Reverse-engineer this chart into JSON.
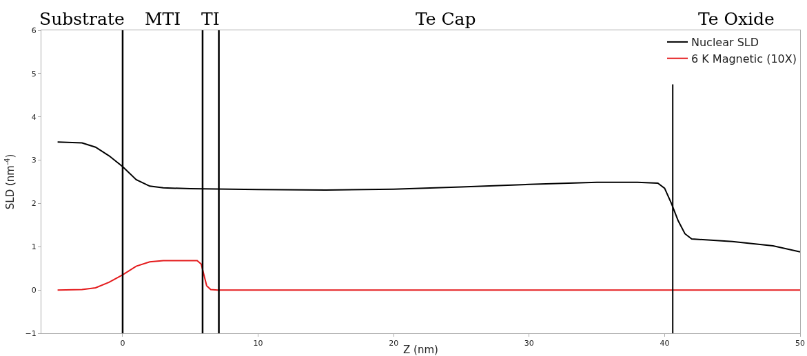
{
  "chart_data": {
    "type": "line",
    "xlabel": "Z (nm)",
    "ylabel": "SLD (nm$^{-4}$)",
    "xlim": [
      -6,
      50
    ],
    "xticks": [
      0,
      10,
      20,
      30,
      40,
      50
    ],
    "ylim": [
      -1,
      6
    ],
    "yticks": [
      -1,
      0,
      1,
      2,
      3,
      4,
      5,
      6
    ],
    "grid": false,
    "legend": "top right",
    "marker": "none",
    "line_style": "solid",
    "series": [
      {
        "name": "Nuclear SLD",
        "color": "#000000",
        "x": [
          -4.8,
          -3,
          -2,
          -1,
          0,
          1,
          2,
          3,
          5,
          10,
          15,
          20,
          25,
          30,
          35,
          38,
          39.5,
          40,
          40.5,
          41,
          41.5,
          42,
          45,
          48,
          50
        ],
        "values": [
          3.42,
          3.4,
          3.3,
          3.1,
          2.85,
          2.55,
          2.4,
          2.36,
          2.34,
          2.32,
          2.31,
          2.33,
          2.38,
          2.44,
          2.49,
          2.49,
          2.47,
          2.35,
          2.0,
          1.6,
          1.3,
          1.18,
          1.12,
          1.02,
          0.88
        ]
      },
      {
        "name": "6 K Magnetic (10X)",
        "color": "#e41a1c",
        "x": [
          -4.8,
          -3,
          -2,
          -1,
          0,
          1,
          2,
          3,
          5.5,
          5.8,
          6,
          6.2,
          6.5,
          7,
          50
        ],
        "values": [
          0,
          0.01,
          0.05,
          0.18,
          0.35,
          0.55,
          0.65,
          0.68,
          0.68,
          0.6,
          0.35,
          0.1,
          0.01,
          0,
          0
        ]
      },
      {
        "color": "#000000",
        "x": [
          40.6,
          40.6
        ],
        "values": [
          -1,
          4.75
        ]
      }
    ],
    "ref_lines": [
      {
        "axis": "x",
        "value": 0,
        "color": "#000000"
      },
      {
        "axis": "x",
        "value": 5.9,
        "color": "#000000"
      },
      {
        "axis": "x",
        "value": 7.1,
        "color": "#000000"
      }
    ],
    "annotations": [
      "Substrate",
      "MTI",
      "TI",
      "Te Cap",
      "Te Oxide"
    ]
  }
}
